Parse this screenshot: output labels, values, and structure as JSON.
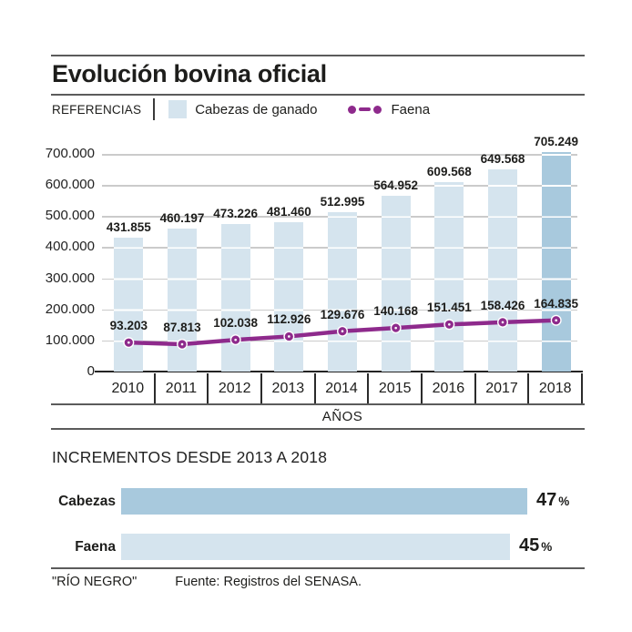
{
  "header": {
    "title": "Evolución bovina oficial",
    "legend_label": "REFERENCIAS",
    "legend_items": [
      {
        "icon": "bar-swatch-icon",
        "label": "Cabezas de ganado"
      },
      {
        "icon": "line-marker-icon",
        "label": "Faena"
      }
    ]
  },
  "chart_data": {
    "type": "bar",
    "categories": [
      "2010",
      "2011",
      "2012",
      "2013",
      "2014",
      "2015",
      "2016",
      "2017",
      "2018"
    ],
    "series": [
      {
        "name": "Cabezas de ganado",
        "type": "bar",
        "values": [
          431855,
          460197,
          473226,
          481460,
          512995,
          564952,
          609568,
          649568,
          705249
        ],
        "labels": [
          "431.855",
          "460.197",
          "473.226",
          "481.460",
          "512.995",
          "564.952",
          "609.568",
          "649.568",
          "705.249"
        ]
      },
      {
        "name": "Faena",
        "type": "line",
        "values": [
          93203,
          87813,
          102038,
          112926,
          129676,
          140168,
          151451,
          158426,
          164835
        ],
        "labels": [
          "93.203",
          "87.813",
          "102.038",
          "112.926",
          "129.676",
          "140.168",
          "151.451",
          "158.426",
          "164.835"
        ]
      }
    ],
    "y_ticks": [
      "700.000",
      "600.000",
      "500.000",
      "400.000",
      "300.000",
      "200.000",
      "100.000",
      "0"
    ],
    "ylim": [
      0,
      700000
    ],
    "xlabel": "AÑOS",
    "grid": true,
    "highlight_last_bar": true,
    "legend_position": "top"
  },
  "increments": {
    "title": "INCREMENTOS DESDE 2013 A 2018",
    "rows": [
      {
        "label": "Cabezas",
        "value": 47,
        "value_label": "47",
        "unit": "%",
        "dark": true
      },
      {
        "label": "Faena",
        "value": 45,
        "value_label": "45",
        "unit": "%",
        "dark": false
      }
    ]
  },
  "footer": {
    "brand": "\"RÍO NEGRO\"",
    "source": "Fuente: Registros del SENASA."
  },
  "colors": {
    "bar_light": "#d5e4ee",
    "bar_dark": "#a8c9dd",
    "line": "#8e2a8c",
    "grid": "#cbcbcb",
    "ink": "#1d1d1b",
    "rule": "#5b5b5b"
  }
}
